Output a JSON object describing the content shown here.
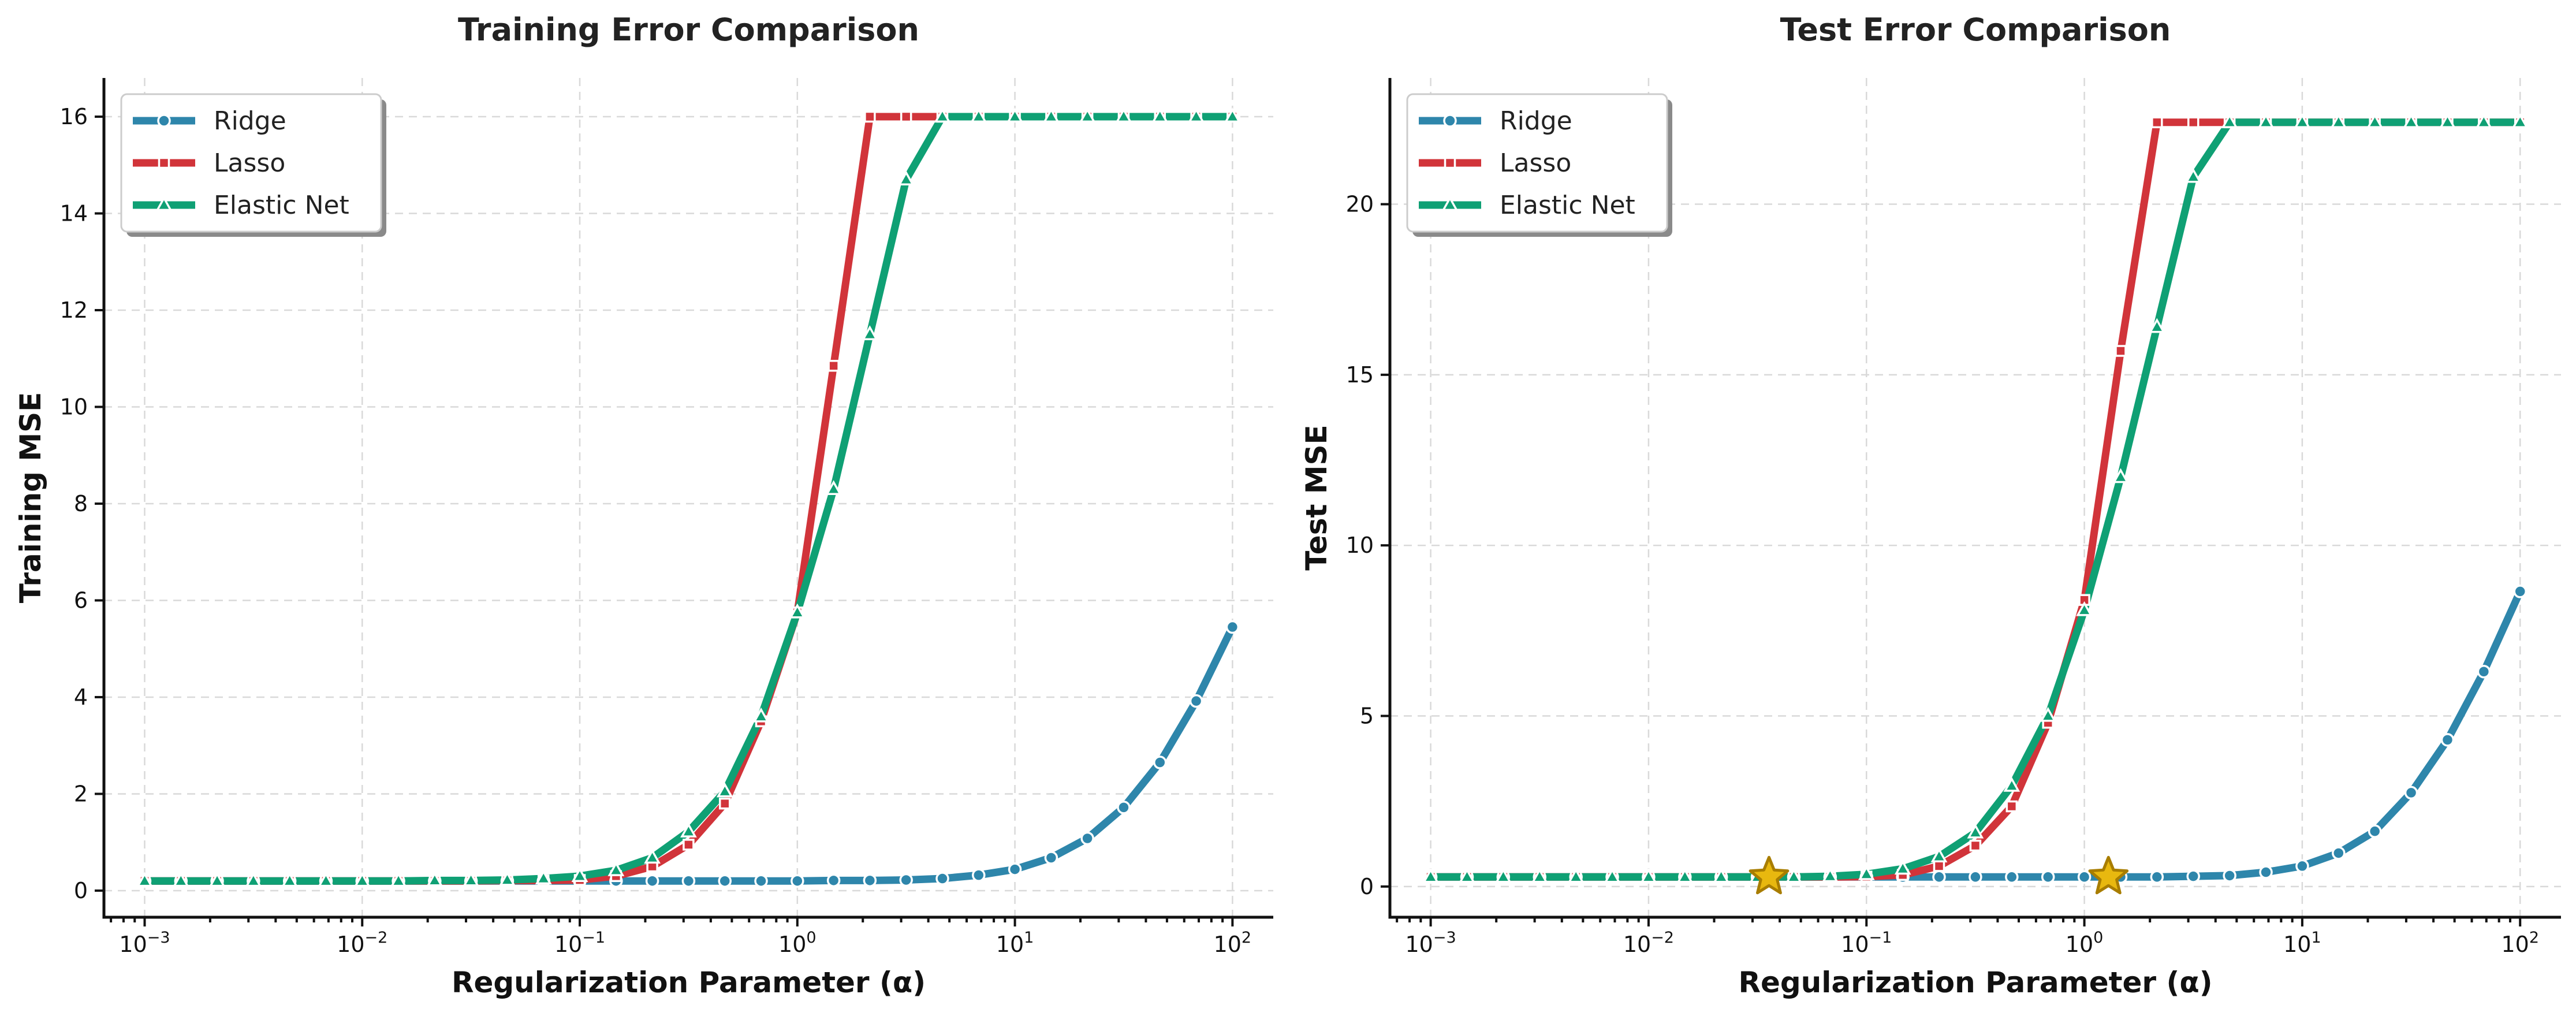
{
  "colors": {
    "ridge": "#2e86ab",
    "lasso": "#d1343a",
    "elastic_net": "#0fa074",
    "star_fill": "#e8b80f",
    "star_stroke": "#a87d00"
  },
  "chart_data": [
    {
      "type": "line",
      "title": "Training Error Comparison",
      "xlabel": "Regularization Parameter (α)",
      "ylabel": "Training MSE",
      "x_scale": "log",
      "xlim": [
        0.00065,
        154
      ],
      "ylim": [
        -0.55,
        16.8
      ],
      "x_ticks": [
        0.001,
        0.01,
        0.1,
        1,
        10,
        100
      ],
      "x_tick_labels": [
        [
          "10",
          "−3"
        ],
        [
          "10",
          "−2"
        ],
        [
          "10",
          "−1"
        ],
        [
          "10",
          "0"
        ],
        [
          "10",
          "1"
        ],
        [
          "10",
          "2"
        ]
      ],
      "y_ticks": [
        0,
        2,
        4,
        6,
        8,
        10,
        12,
        14,
        16
      ],
      "y_tick_labels": [
        "0",
        "2",
        "4",
        "6",
        "8",
        "10",
        "12",
        "14",
        "16"
      ],
      "grid": true,
      "legend": {
        "position": "top-left",
        "entries": [
          "Ridge",
          "Lasso",
          "Elastic Net"
        ]
      },
      "series": [
        {
          "name": "Ridge",
          "color_key": "ridge",
          "marker": "circle",
          "x": [
            0.001,
            0.001468,
            0.002154,
            0.003162,
            0.004642,
            0.006813,
            0.01,
            0.01468,
            0.02154,
            0.03162,
            0.04642,
            0.06813,
            0.1,
            0.1468,
            0.2154,
            0.3162,
            0.4642,
            0.6813,
            1,
            1.468,
            2.154,
            3.162,
            4.642,
            6.813,
            10,
            14.68,
            21.54,
            31.62,
            46.42,
            68.13,
            100
          ],
          "y": [
            0.2,
            0.2,
            0.2,
            0.2,
            0.2,
            0.2,
            0.2,
            0.2,
            0.2,
            0.2,
            0.2,
            0.2,
            0.2,
            0.2,
            0.2,
            0.2,
            0.2,
            0.2,
            0.2,
            0.21,
            0.21,
            0.22,
            0.25,
            0.32,
            0.44,
            0.68,
            1.08,
            1.72,
            2.65,
            3.92,
            5.45
          ]
        },
        {
          "name": "Lasso",
          "color_key": "lasso",
          "marker": "square",
          "x": [
            0.001,
            0.001468,
            0.002154,
            0.003162,
            0.004642,
            0.006813,
            0.01,
            0.01468,
            0.02154,
            0.03162,
            0.04642,
            0.06813,
            0.1,
            0.1468,
            0.2154,
            0.3162,
            0.4642,
            0.6813,
            1,
            1.468,
            2.154,
            3.162,
            4.642,
            6.813,
            10,
            14.68,
            21.54,
            31.62,
            46.42,
            68.13,
            100
          ],
          "y": [
            0.2,
            0.2,
            0.2,
            0.2,
            0.2,
            0.2,
            0.2,
            0.2,
            0.2,
            0.2,
            0.21,
            0.21,
            0.22,
            0.3,
            0.5,
            0.95,
            1.8,
            3.5,
            5.75,
            10.85,
            16,
            16,
            16,
            16,
            16,
            16,
            16,
            16,
            16,
            16,
            16
          ]
        },
        {
          "name": "Elastic Net",
          "color_key": "elastic_net",
          "marker": "triangle",
          "x": [
            0.001,
            0.001468,
            0.002154,
            0.003162,
            0.004642,
            0.006813,
            0.01,
            0.01468,
            0.02154,
            0.03162,
            0.04642,
            0.06813,
            0.1,
            0.1468,
            0.2154,
            0.3162,
            0.4642,
            0.6813,
            1,
            1.468,
            2.154,
            3.162,
            4.642,
            6.813,
            10,
            14.68,
            21.54,
            31.62,
            46.42,
            68.13,
            100
          ],
          "y": [
            0.2,
            0.2,
            0.2,
            0.2,
            0.2,
            0.2,
            0.2,
            0.2,
            0.21,
            0.21,
            0.22,
            0.25,
            0.3,
            0.42,
            0.68,
            1.22,
            2.05,
            3.6,
            5.75,
            8.3,
            11.5,
            14.7,
            16,
            16,
            16,
            16,
            16,
            16,
            16,
            16,
            16
          ]
        }
      ]
    },
    {
      "type": "line",
      "title": "Test Error Comparison",
      "xlabel": "Regularization Parameter (α)",
      "ylabel": "Test MSE",
      "x_scale": "log",
      "xlim": [
        0.00065,
        154
      ],
      "ylim": [
        -0.9,
        23.7
      ],
      "x_ticks": [
        0.001,
        0.01,
        0.1,
        1,
        10,
        100
      ],
      "x_tick_labels": [
        [
          "10",
          "−3"
        ],
        [
          "10",
          "−2"
        ],
        [
          "10",
          "−1"
        ],
        [
          "10",
          "0"
        ],
        [
          "10",
          "1"
        ],
        [
          "10",
          "2"
        ]
      ],
      "y_ticks": [
        0,
        5,
        10,
        15,
        20
      ],
      "y_tick_labels": [
        "0",
        "5",
        "10",
        "15",
        "20"
      ],
      "grid": true,
      "legend": {
        "position": "top-left",
        "entries": [
          "Ridge",
          "Lasso",
          "Elastic Net"
        ]
      },
      "series": [
        {
          "name": "Ridge",
          "color_key": "ridge",
          "marker": "circle",
          "x": [
            0.001,
            0.001468,
            0.002154,
            0.003162,
            0.004642,
            0.006813,
            0.01,
            0.01468,
            0.02154,
            0.03162,
            0.04642,
            0.06813,
            0.1,
            0.1468,
            0.2154,
            0.3162,
            0.4642,
            0.6813,
            1,
            1.468,
            2.154,
            3.162,
            4.642,
            6.813,
            10,
            14.68,
            21.54,
            31.62,
            46.42,
            68.13,
            100
          ],
          "y": [
            0.28,
            0.28,
            0.28,
            0.28,
            0.28,
            0.28,
            0.28,
            0.28,
            0.28,
            0.28,
            0.28,
            0.28,
            0.28,
            0.28,
            0.28,
            0.28,
            0.28,
            0.28,
            0.28,
            0.28,
            0.28,
            0.3,
            0.32,
            0.42,
            0.6,
            0.98,
            1.62,
            2.75,
            4.3,
            6.3,
            8.65
          ]
        },
        {
          "name": "Lasso",
          "color_key": "lasso",
          "marker": "square",
          "x": [
            0.001,
            0.001468,
            0.002154,
            0.003162,
            0.004642,
            0.006813,
            0.01,
            0.01468,
            0.02154,
            0.03162,
            0.04642,
            0.06813,
            0.1,
            0.1468,
            0.2154,
            0.3162,
            0.4642,
            0.6813,
            1,
            1.468,
            2.154,
            3.162,
            4.642,
            6.813,
            10,
            14.68,
            21.54,
            31.62,
            46.42,
            68.13,
            100
          ],
          "y": [
            0.28,
            0.28,
            0.28,
            0.28,
            0.28,
            0.28,
            0.28,
            0.28,
            0.28,
            0.28,
            0.28,
            0.28,
            0.29,
            0.34,
            0.6,
            1.2,
            2.35,
            4.8,
            8.4,
            15.7,
            22.4,
            22.4,
            22.4,
            22.4,
            22.4,
            22.4,
            22.4,
            22.4,
            22.4,
            22.4,
            22.4
          ]
        },
        {
          "name": "Elastic Net",
          "color_key": "elastic_net",
          "marker": "triangle",
          "x": [
            0.001,
            0.001468,
            0.002154,
            0.003162,
            0.004642,
            0.006813,
            0.01,
            0.01468,
            0.02154,
            0.03162,
            0.04642,
            0.06813,
            0.1,
            0.1468,
            0.2154,
            0.3162,
            0.4642,
            0.6813,
            1,
            1.468,
            2.154,
            3.162,
            4.642,
            6.813,
            10,
            14.68,
            21.54,
            31.62,
            46.42,
            68.13,
            100
          ],
          "y": [
            0.28,
            0.28,
            0.28,
            0.28,
            0.28,
            0.28,
            0.28,
            0.28,
            0.28,
            0.28,
            0.28,
            0.3,
            0.36,
            0.52,
            0.88,
            1.58,
            2.95,
            5.0,
            8.1,
            12.0,
            16.4,
            20.8,
            22.4,
            22.4,
            22.4,
            22.4,
            22.4,
            22.4,
            22.4,
            22.4,
            22.4
          ]
        }
      ],
      "annotations": [
        {
          "type": "star",
          "x": 0.0357,
          "y": 0.28
        },
        {
          "type": "star",
          "x": 1.29,
          "y": 0.28
        }
      ]
    }
  ]
}
